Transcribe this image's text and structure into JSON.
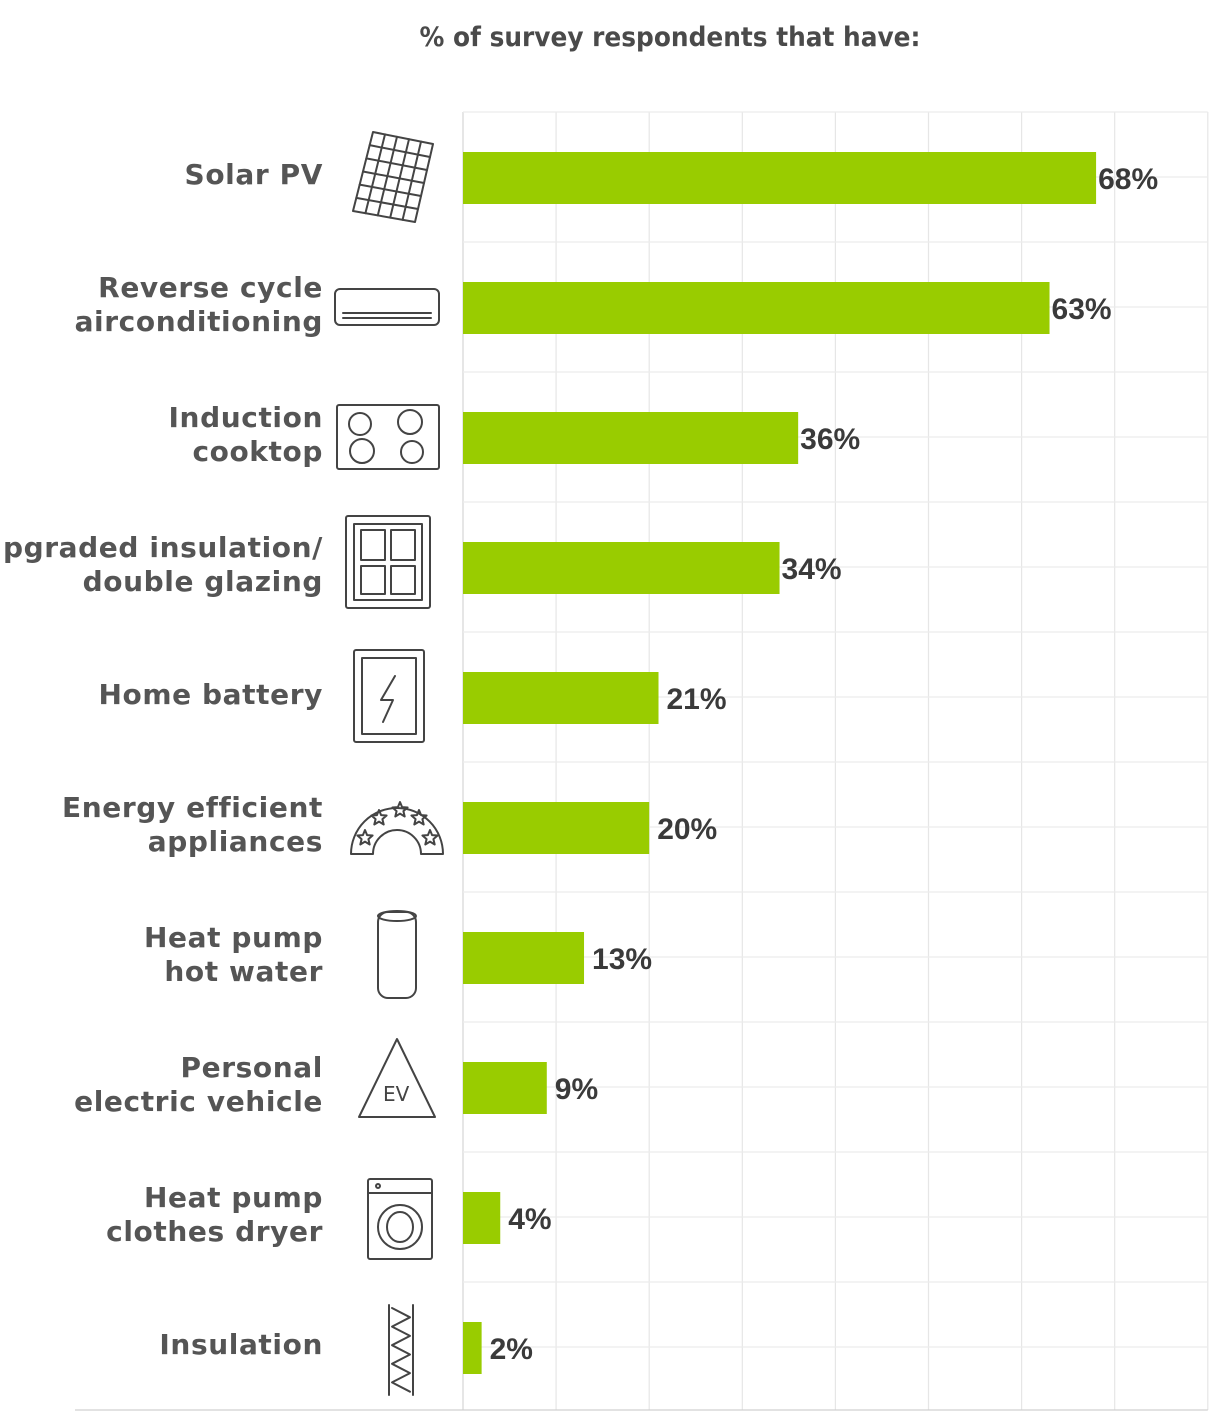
{
  "chart_data": {
    "type": "bar",
    "orientation": "horizontal",
    "title": "% of survey respondents that have:",
    "xlabel": "",
    "ylabel": "",
    "xlim": [
      0,
      80
    ],
    "grid": true,
    "bar_color": "#99cc00",
    "categories": [
      [
        "Solar PV"
      ],
      [
        "Reverse cycle",
        "airconditioning"
      ],
      [
        "Induction",
        "cooktop"
      ],
      [
        "Upgraded insulation/",
        "double glazing"
      ],
      [
        "Home battery"
      ],
      [
        "Energy efficient",
        "appliances"
      ],
      [
        "Heat pump",
        "hot water"
      ],
      [
        "Personal",
        "electric vehicle"
      ],
      [
        "Heat pump",
        "clothes dryer"
      ],
      [
        "Insulation"
      ]
    ],
    "values": [
      68,
      63,
      36,
      34,
      21,
      20,
      13,
      9,
      4,
      2
    ],
    "value_labels": [
      "68%",
      "63%",
      "36%",
      "34%",
      "21%",
      "20%",
      "13%",
      "9%",
      "4%",
      "2%"
    ],
    "icons": [
      "solar-panel-icon",
      "air-conditioner-icon",
      "cooktop-icon",
      "window-icon",
      "battery-icon",
      "star-rating-icon",
      "hot-water-cylinder-icon",
      "ev-sign-icon",
      "clothes-dryer-icon",
      "wall-insulation-icon"
    ]
  }
}
